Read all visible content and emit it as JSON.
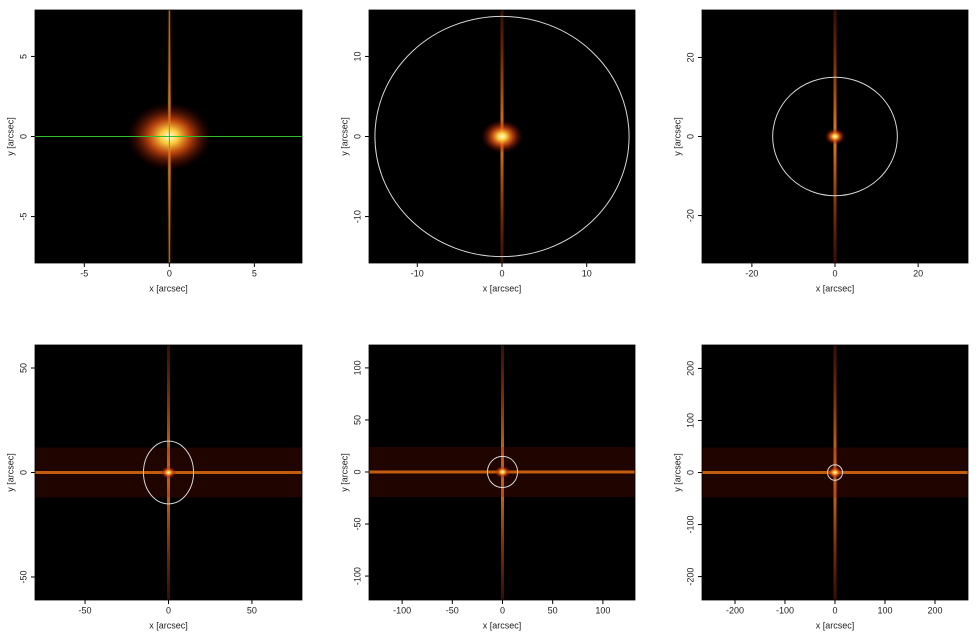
{
  "chart_data": [
    {
      "type": "image",
      "xlabel": "x [arcsec]",
      "ylabel": "y [arcsec]",
      "xlim": [
        -7.9,
        7.8
      ],
      "ylim": [
        -7.9,
        7.9
      ],
      "xticks": [
        -5,
        0,
        5
      ],
      "yticks": [
        -5,
        0,
        5
      ],
      "crosshair": {
        "x": 0,
        "y": 0,
        "color": "#2fbf2f"
      }
    },
    {
      "type": "image",
      "xlabel": "x [arcsec]",
      "ylabel": "y [arcsec]",
      "xlim": [
        -15.7,
        15.7
      ],
      "ylim": [
        -15.8,
        15.8
      ],
      "xticks": [
        -10,
        0,
        10
      ],
      "yticks": [
        -10,
        0,
        10
      ],
      "circle": {
        "x": 0,
        "y": 0,
        "r": 15,
        "color": "#d8d8d8"
      }
    },
    {
      "type": "image",
      "xlabel": "x [arcsec]",
      "ylabel": "y [arcsec]",
      "xlim": [
        -32,
        32
      ],
      "ylim": [
        -32,
        32
      ],
      "xticks": [
        -20,
        0,
        20
      ],
      "yticks": [
        -20,
        0,
        20
      ],
      "circle": {
        "x": 0,
        "y": 0,
        "r": 15,
        "color": "#d8d8d8"
      }
    },
    {
      "type": "image",
      "xlabel": "x [arcsec]",
      "ylabel": "y [arcsec]",
      "xlim": [
        -80,
        80
      ],
      "ylim": [
        -61,
        61
      ],
      "xticks": [
        -50,
        0,
        50
      ],
      "yticks": [
        -50,
        0,
        50
      ],
      "circle": {
        "x": 0,
        "y": 0,
        "r": 15,
        "color": "#d8d8d8"
      }
    },
    {
      "type": "image",
      "xlabel": "x [arcsec]",
      "ylabel": "y [arcsec]",
      "xlim": [
        -133,
        132
      ],
      "ylim": [
        -123,
        122
      ],
      "xticks": [
        -100,
        -50,
        0,
        50,
        100
      ],
      "yticks": [
        -100,
        -50,
        0,
        50,
        100
      ],
      "circle": {
        "x": 0,
        "y": 0,
        "r": 15,
        "color": "#d8d8d8"
      }
    },
    {
      "type": "image",
      "xlabel": "x [arcsec]",
      "ylabel": "y [arcsec]",
      "xlim": [
        -266,
        266
      ],
      "ylim": [
        -245,
        245
      ],
      "xticks": [
        -200,
        -100,
        0,
        100,
        200
      ],
      "yticks": [
        -200,
        -100,
        0,
        100,
        200
      ],
      "circle": {
        "x": 0,
        "y": 0,
        "r": 15,
        "color": "#d8d8d8"
      }
    }
  ]
}
